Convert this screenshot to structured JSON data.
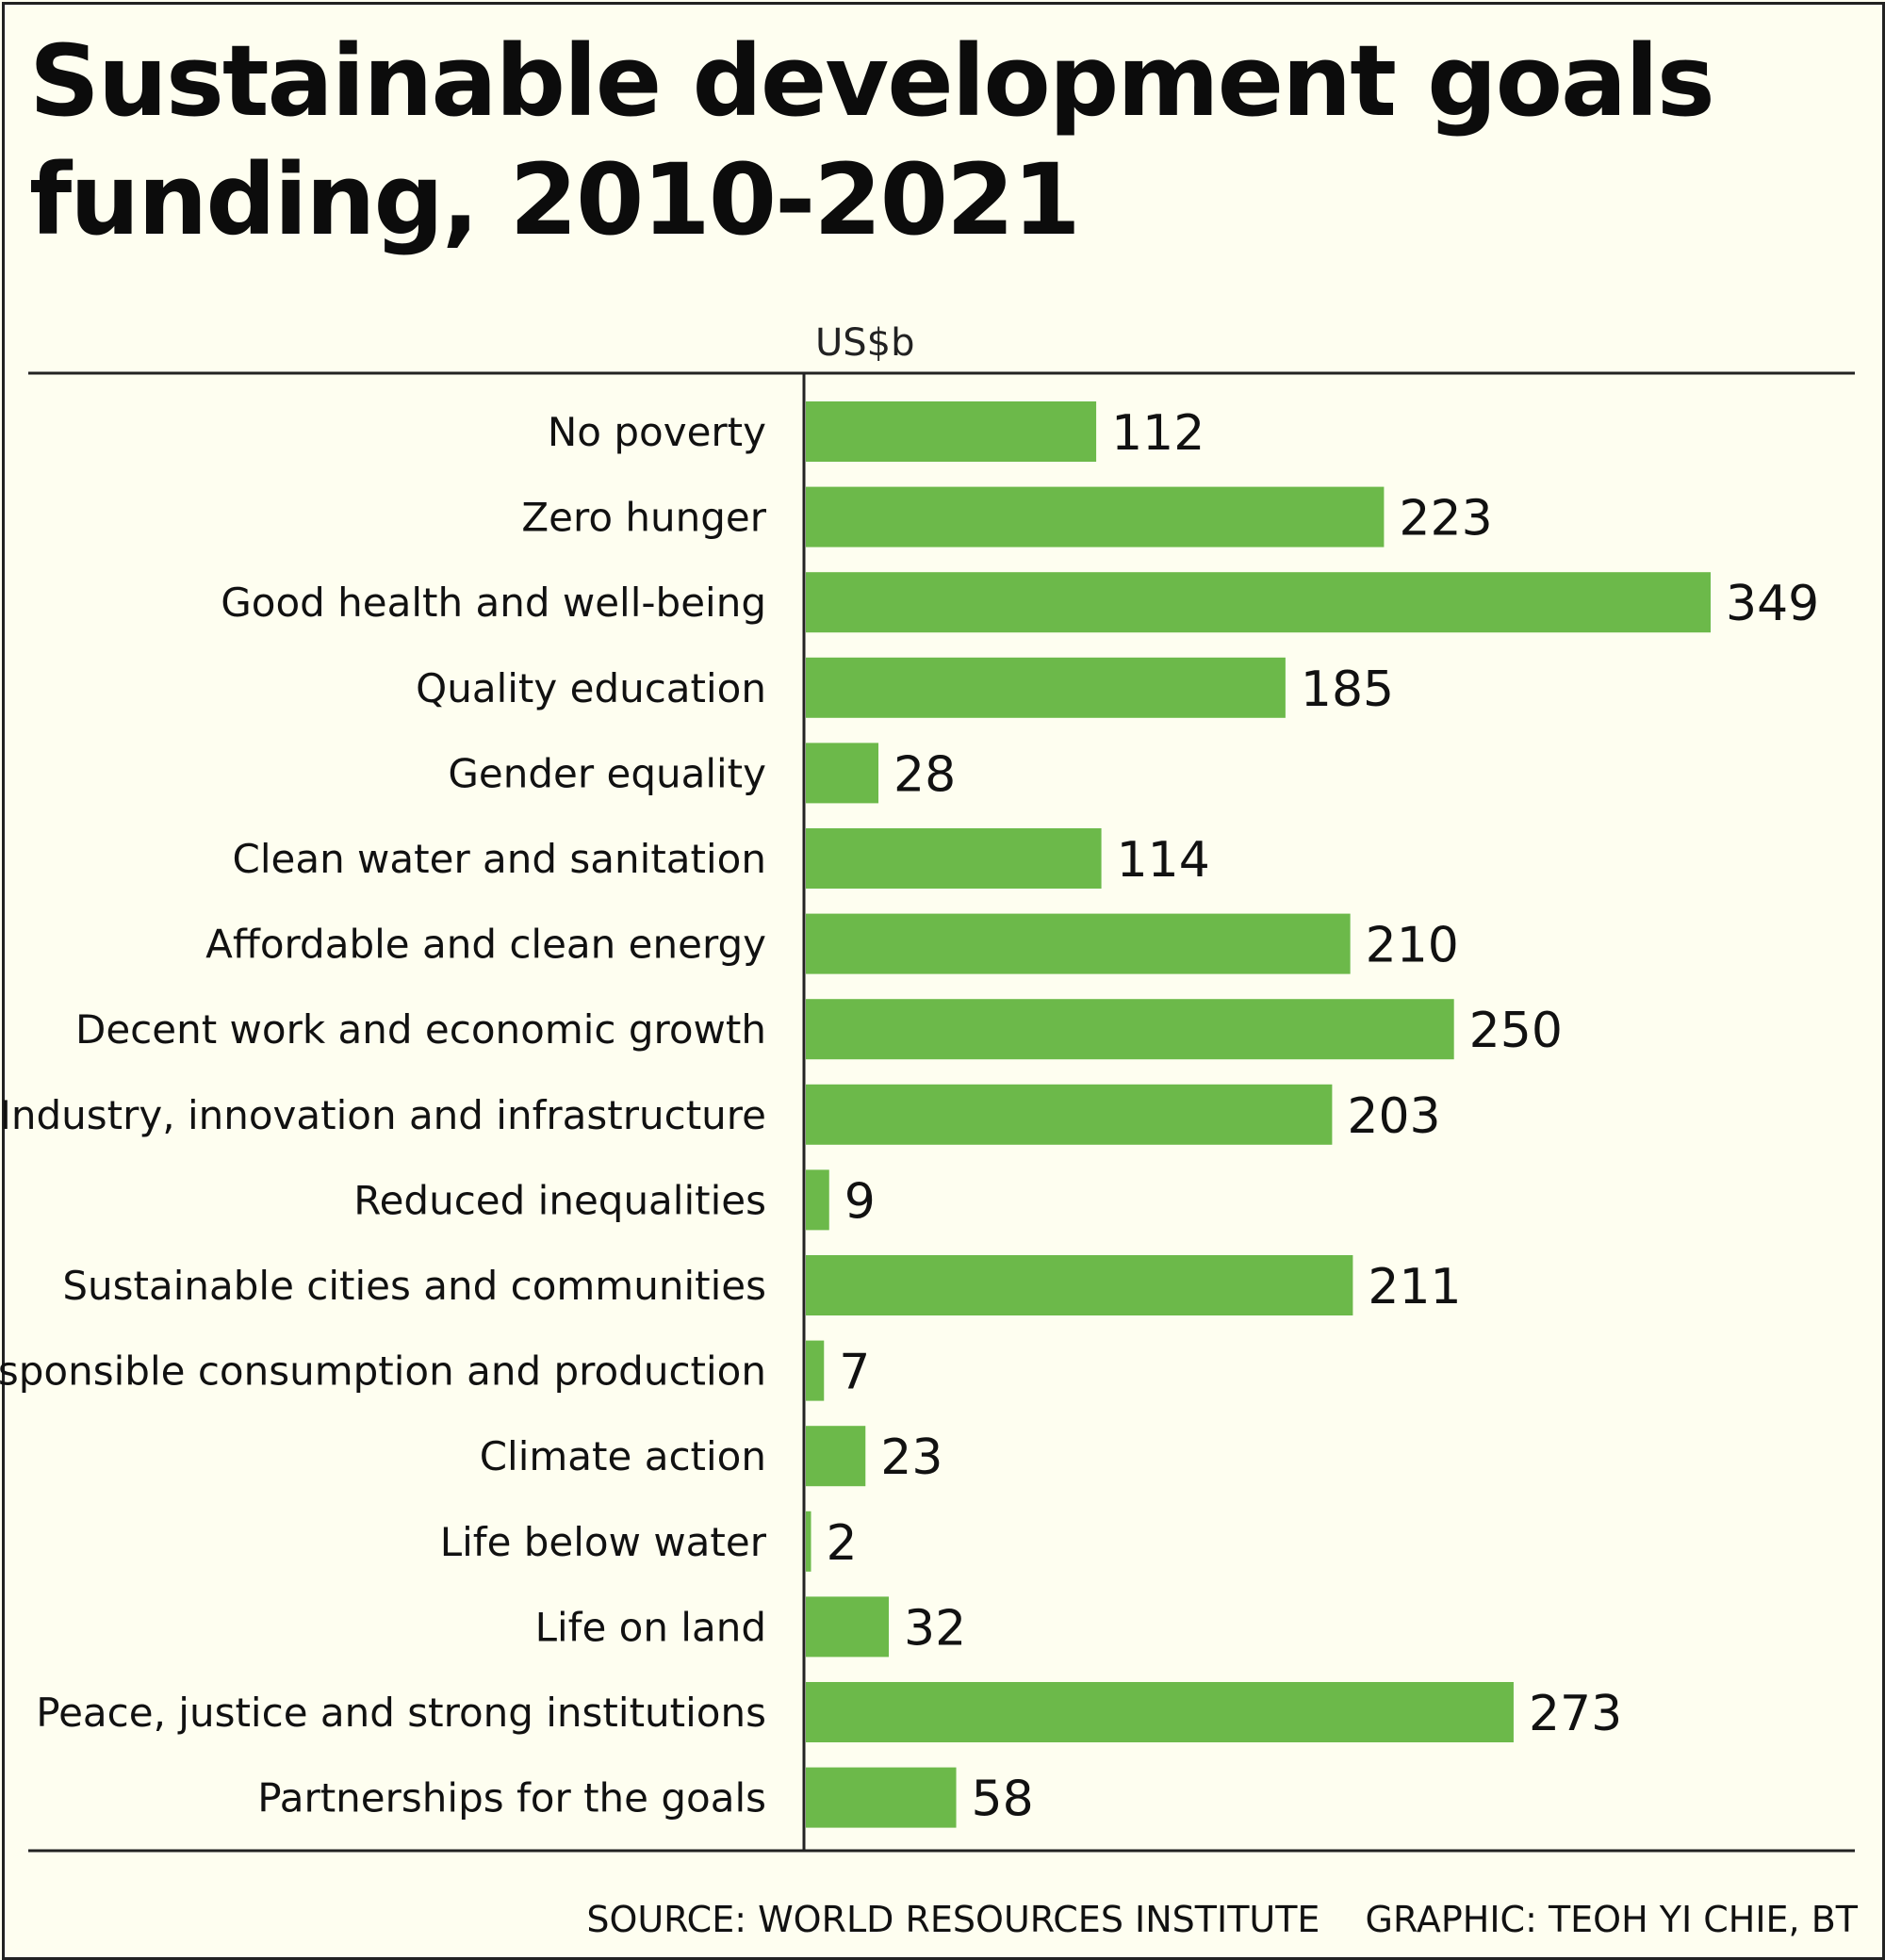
{
  "chart_data": {
    "type": "bar",
    "orientation": "horizontal",
    "title": "Sustainable development goals funding, 2010-2021",
    "unit": "US$b",
    "categories": [
      "No poverty",
      "Zero hunger",
      "Good health and well-being",
      "Quality education",
      "Gender equality",
      "Clean water and sanitation",
      "Affordable and clean energy",
      "Decent work and economic growth",
      "Industry, innovation and infrastructure",
      "Reduced inequalities",
      "Sustainable cities and communities",
      "Responsible consumption and production",
      "Climate action",
      "Life below water",
      "Life on land",
      "Peace, justice and strong institutions",
      "Partnerships for the goals"
    ],
    "values": [
      112,
      223,
      349,
      185,
      28,
      114,
      210,
      250,
      203,
      9,
      211,
      7,
      23,
      2,
      32,
      273,
      58
    ],
    "xlim": [
      0,
      349
    ],
    "bar_color": "#6cb94a",
    "grid": false,
    "legend": "none"
  },
  "footer": {
    "source": "SOURCE: WORLD RESOURCES INSTITUTE",
    "graphic": "GRAPHIC: TEOH YI CHIE, BT"
  }
}
